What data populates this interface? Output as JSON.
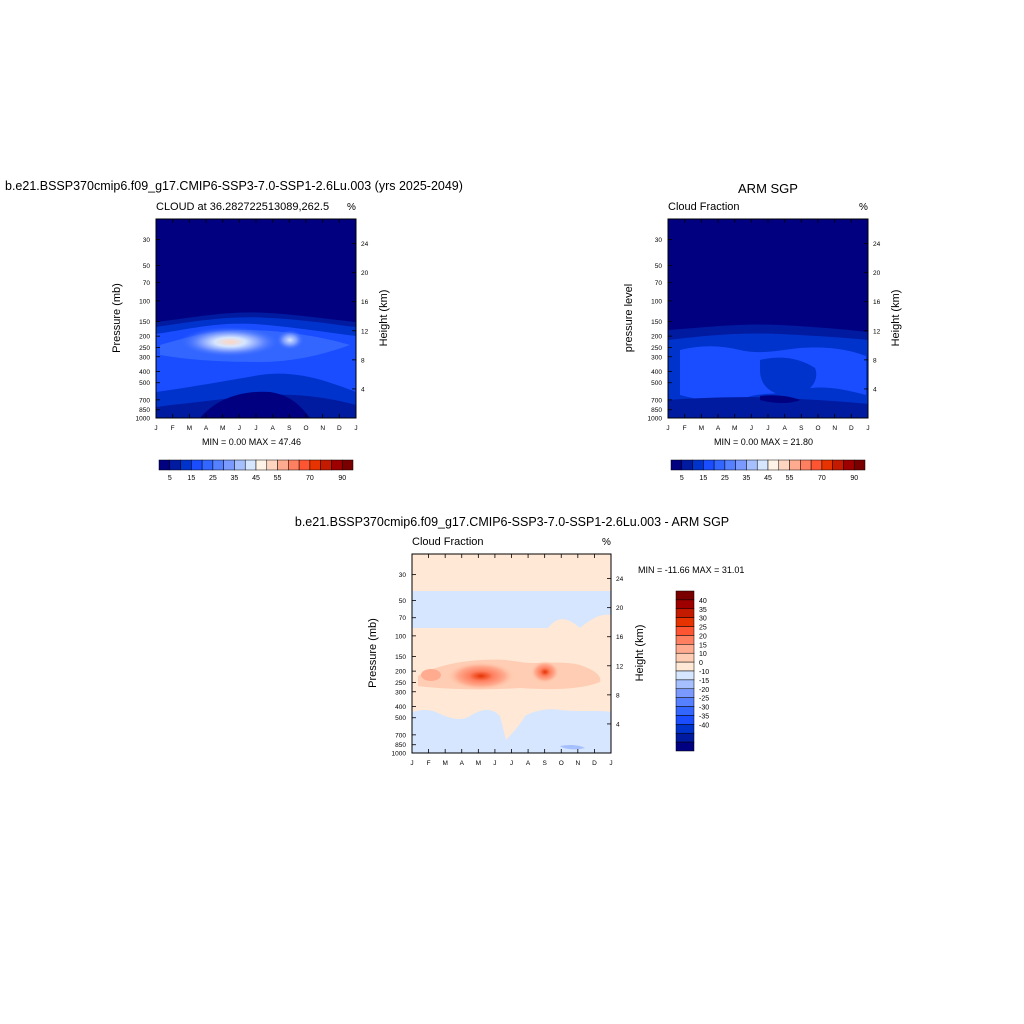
{
  "colors": {
    "cbar": [
      "#000080",
      "#001aa0",
      "#0033cc",
      "#1a4dff",
      "#3366ff",
      "#5580ff",
      "#7a9aff",
      "#a6c0ff",
      "#d6e6ff",
      "#fff2e6",
      "#ffd5bf",
      "#ffab8f",
      "#ff8060",
      "#ff5533",
      "#e63300",
      "#c41a00",
      "#9e0000",
      "#7a0000"
    ],
    "diff": [
      "#000080",
      "#001aa0",
      "#0033cc",
      "#1a4dff",
      "#3366ff",
      "#5580ff",
      "#7a9aff",
      "#a6c0ff",
      "#d6e6ff",
      "#ffe8d6",
      "#ffcdb3",
      "#ffab8f",
      "#ff8060",
      "#ff5533",
      "#e63300",
      "#c41a00",
      "#9e0000",
      "#7a0000"
    ]
  },
  "panel1": {
    "main_title": "b.e21.BSSP370cmip6.f09_g17.CMIP6-SSP3-7.0-SSP1-2.6Lu.003 (yrs 2025-2049)",
    "left_string": "CLOUD at 36.282722513089,262.5",
    "right_string": "%",
    "ylabel": "Pressure (mb)",
    "y2label": "Height (km)",
    "minmax": "MIN =   0.00 MAX =  47.46"
  },
  "panel2": {
    "main_title": "ARM SGP",
    "left_string": "Cloud Fraction",
    "right_string": "%",
    "ylabel": "pressure level",
    "y2label": "Height (km)",
    "minmax": "MIN =   0.00 MAX =  21.80"
  },
  "panel3": {
    "main_title": "b.e21.BSSP370cmip6.f09_g17.CMIP6-SSP3-7.0-SSP1-2.6Lu.003 - ARM SGP",
    "left_string": "Cloud Fraction",
    "right_string": "%",
    "ylabel": "Pressure (mb)",
    "y2label": "Height (km)",
    "minmax": "MIN = -11.66 MAX =  31.01"
  },
  "chart_data": [
    {
      "type": "heatmap",
      "title": "CLOUD at 36.282722513089,262.5",
      "xlabel": "",
      "ylabel": "Pressure (mb)",
      "y2label": "Height (km)",
      "x_ticklabels": [
        "J",
        "F",
        "M",
        "A",
        "M",
        "J",
        "J",
        "A",
        "S",
        "O",
        "N",
        "D",
        "J"
      ],
      "y_ticks": [
        30,
        50,
        70,
        100,
        150,
        200,
        250,
        300,
        400,
        500,
        700,
        850,
        1000
      ],
      "y2_ticks": [
        24,
        20,
        16,
        12,
        8,
        4
      ],
      "ylim": [
        1000,
        20
      ],
      "colorbar_labels": [
        "5",
        "15",
        "25",
        "35",
        "45",
        "55",
        "70",
        "90"
      ],
      "min": 0.0,
      "max": 47.46,
      "features": [
        {
          "month": 4.4,
          "pressure": 250,
          "value": 47
        },
        {
          "month": 7.8,
          "pressure": 250,
          "value": 28
        }
      ]
    },
    {
      "type": "heatmap",
      "title": "Cloud Fraction",
      "xlabel": "",
      "ylabel": "pressure level",
      "y2label": "Height (km)",
      "x_ticklabels": [
        "J",
        "F",
        "M",
        "A",
        "M",
        "J",
        "J",
        "A",
        "S",
        "O",
        "N",
        "D",
        "J"
      ],
      "y_ticks": [
        30,
        50,
        70,
        100,
        150,
        200,
        250,
        300,
        400,
        500,
        700,
        850,
        1000
      ],
      "y2_ticks": [
        24,
        20,
        16,
        12,
        8,
        4
      ],
      "ylim": [
        1000,
        20
      ],
      "colorbar_labels": [
        "5",
        "15",
        "25",
        "35",
        "45",
        "55",
        "70",
        "90"
      ],
      "min": 0.0,
      "max": 21.8
    },
    {
      "type": "heatmap",
      "title": "Cloud Fraction",
      "xlabel": "",
      "ylabel": "Pressure (mb)",
      "y2label": "Height (km)",
      "x_ticklabels": [
        "J",
        "F",
        "M",
        "A",
        "M",
        "J",
        "J",
        "A",
        "S",
        "O",
        "N",
        "D",
        "J"
      ],
      "y_ticks": [
        30,
        50,
        70,
        100,
        150,
        200,
        250,
        300,
        400,
        500,
        700,
        850,
        1000
      ],
      "y2_ticks": [
        24,
        20,
        16,
        12,
        8,
        4
      ],
      "ylim": [
        1000,
        20
      ],
      "colorbar_labels": [
        "40",
        "35",
        "30",
        "25",
        "20",
        "15",
        "10",
        "0",
        "-10",
        "-15",
        "-20",
        "-25",
        "-30",
        "-35",
        "-40"
      ],
      "min": -11.66,
      "max": 31.01
    }
  ]
}
